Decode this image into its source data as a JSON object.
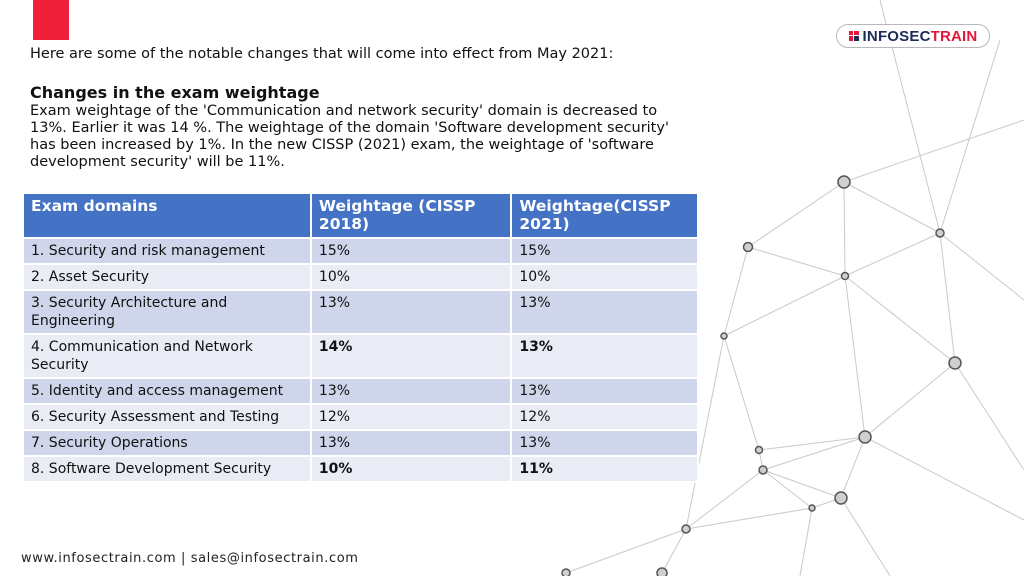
{
  "logo": {
    "part1": "INFOSEC",
    "part2": "TRAIN"
  },
  "intro": "Here are some of the notable changes that will come into effect from May 2021:",
  "heading": "Changes in the exam weightage",
  "paragraph": "Exam weightage of the 'Communication and network security' domain is decreased to 13%. Earlier it was 14 %. The weightage of the domain 'Software development security' has been increased by 1%. In the new CISSP (2021) exam, the weightage of 'software development security' will be 11%.",
  "table": {
    "headers": [
      "Exam domains",
      "Weightage (CISSP 2018)",
      "Weightage(CISSP 2021)"
    ],
    "rows": [
      {
        "domain": "1. Security and risk management",
        "w2018": "15%",
        "w2021": "15%"
      },
      {
        "domain": "2. Asset Security",
        "w2018": "10%",
        "w2021": "10%"
      },
      {
        "domain": "3.  Security Architecture and Engineering",
        "w2018": "13%",
        "w2021": "13%"
      },
      {
        "domain": "4. Communication and Network Security",
        "w2018": "14%",
        "w2021": "13%"
      },
      {
        "domain": "5. Identity and access management",
        "w2018": "13%",
        "w2021": "13%"
      },
      {
        "domain": "6. Security Assessment and Testing",
        "w2018": "12%",
        "w2021": "12%"
      },
      {
        "domain": "7. Security Operations",
        "w2018": "13%",
        "w2021": "13%"
      },
      {
        "domain": "8. Software Development Security",
        "w2018": "10%",
        "w2021": "11%"
      }
    ]
  },
  "footer": "www.infosectrain.com | sales@infosectrain.com",
  "colors": {
    "accent_red": "#f0203a",
    "table_header": "#4472c4",
    "row_dark": "#cfd5ea",
    "row_light": "#e9ebf5",
    "logo_navy": "#1d2c56"
  }
}
